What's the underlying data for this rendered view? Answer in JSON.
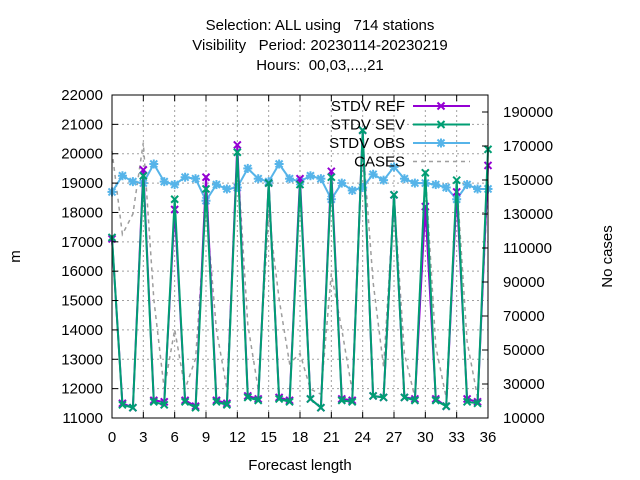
{
  "title_lines": [
    "Selection: ALL using   714 stations",
    "Visibility   Period: 20230114-20230219",
    "Hours:  00,03,...,21"
  ],
  "chart_data": {
    "type": "line",
    "xlabel": "Forecast length",
    "ylabel": "m",
    "y2label": "No cases",
    "xlim": [
      0,
      36
    ],
    "ylim": [
      11000,
      22000
    ],
    "y2lim": [
      10000,
      200000
    ],
    "x_ticks": [
      0,
      3,
      6,
      9,
      12,
      15,
      18,
      21,
      24,
      27,
      30,
      33,
      36
    ],
    "y_ticks": [
      11000,
      12000,
      13000,
      14000,
      15000,
      16000,
      17000,
      18000,
      19000,
      20000,
      21000,
      22000
    ],
    "y2_ticks": [
      10000,
      30000,
      50000,
      70000,
      90000,
      110000,
      130000,
      150000,
      170000,
      190000
    ],
    "grid": true,
    "legend_position": "top-right",
    "x": [
      0,
      1,
      2,
      3,
      4,
      5,
      6,
      7,
      8,
      9,
      10,
      11,
      12,
      13,
      14,
      15,
      16,
      17,
      18,
      19,
      20,
      21,
      22,
      23,
      24,
      25,
      26,
      27,
      28,
      29,
      30,
      31,
      32,
      33,
      34,
      35,
      36
    ],
    "series": [
      {
        "name": "STDV REF",
        "color": "#9400d3",
        "marker": "x",
        "dashed": false,
        "axis": "left",
        "values": [
          17100,
          11500,
          11350,
          19450,
          11600,
          11550,
          18100,
          11600,
          11400,
          19200,
          11600,
          11500,
          20300,
          11750,
          11650,
          19000,
          11700,
          11600,
          19150,
          11650,
          11350,
          19400,
          11650,
          11600,
          20800,
          11750,
          11700,
          18600,
          11700,
          11650,
          18200,
          11650,
          11400,
          18700,
          11650,
          11550,
          19600
        ]
      },
      {
        "name": "STDV SEV",
        "color": "#009e73",
        "marker": "x",
        "dashed": false,
        "axis": "left",
        "values": [
          17150,
          11450,
          11350,
          19250,
          11550,
          11450,
          18450,
          11550,
          11350,
          18800,
          11550,
          11450,
          20050,
          11700,
          11600,
          19000,
          11650,
          11550,
          18950,
          11650,
          11350,
          19200,
          11600,
          11550,
          20800,
          11750,
          11700,
          18600,
          11700,
          11600,
          19350,
          11600,
          11400,
          19100,
          11550,
          11500,
          20150
        ]
      },
      {
        "name": "STDV OBS",
        "color": "#56b4e9",
        "marker": "asterisk",
        "dashed": false,
        "axis": "left",
        "values": [
          18700,
          19250,
          19050,
          19000,
          19650,
          19050,
          18950,
          19200,
          19150,
          18400,
          18950,
          18800,
          18850,
          19500,
          19150,
          19050,
          19650,
          19150,
          19050,
          19250,
          19150,
          18450,
          19000,
          18750,
          18850,
          19300,
          19100,
          19550,
          19150,
          19000,
          19000,
          18950,
          18850,
          18450,
          18950,
          18800,
          18800
        ]
      },
      {
        "name": "CASES",
        "color": "#9e9e9e",
        "marker": "none",
        "dashed": true,
        "axis": "right",
        "values": [
          167000,
          118000,
          130000,
          172000,
          80000,
          27000,
          62000,
          27000,
          45000,
          135000,
          62000,
          27000,
          165000,
          65000,
          27000,
          130000,
          80000,
          42000,
          48000,
          27000,
          24000,
          95000,
          62000,
          26000,
          172000,
          90000,
          40000,
          140000,
          48000,
          22000,
          155000,
          52000,
          22000,
          150000,
          55000,
          22000,
          150000
        ]
      }
    ]
  }
}
